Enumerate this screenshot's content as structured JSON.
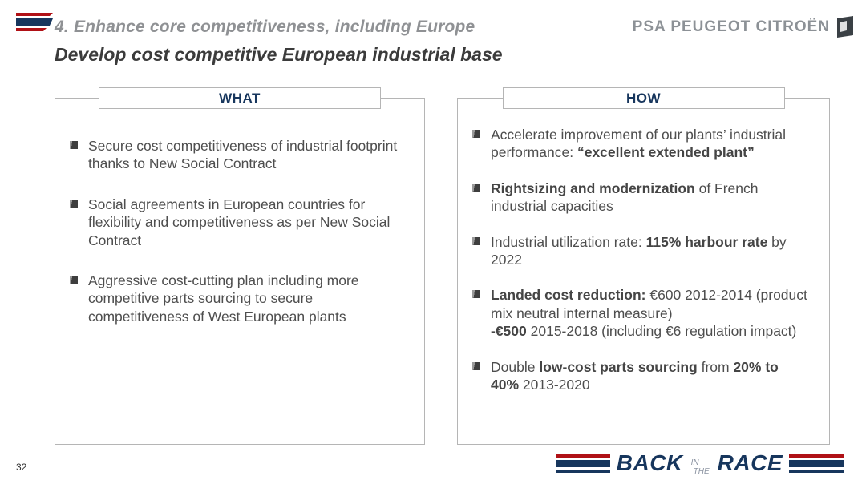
{
  "header": {
    "title": "4. Enhance core competitiveness, including Europe",
    "subtitle": "Develop cost competitive European industrial base",
    "brand": "PSA PEUGEOT CITROËN"
  },
  "columns": [
    {
      "label": "WHAT",
      "bullets": [
        [
          {
            "t": "Secure cost competitiveness of industrial footprint thanks to New Social Contract",
            "b": false
          }
        ],
        [
          {
            "t": "Social agreements in European countries for flexibility and competitiveness as per New Social Contract",
            "b": false
          }
        ],
        [
          {
            "t": "Aggressive cost-cutting plan including more competitive parts sourcing to secure competitiveness of West European plants",
            "b": false
          }
        ]
      ]
    },
    {
      "label": "HOW",
      "bullets": [
        [
          {
            "t": "Accelerate improvement of our plants’ industrial performance: ",
            "b": false
          },
          {
            "t": "“excellent extended plant”",
            "b": true
          }
        ],
        [
          {
            "t": "Rightsizing and modernization",
            "b": true
          },
          {
            "t": " of French industrial capacities",
            "b": false
          }
        ],
        [
          {
            "t": "Industrial utilization rate: ",
            "b": false
          },
          {
            "t": "115% harbour rate",
            "b": true
          },
          {
            "t": " by 2022",
            "b": false
          }
        ],
        [
          {
            "t": "Landed cost reduction:",
            "b": true
          },
          {
            "t": " €600 2012-2014 (product mix neutral internal measure)",
            "b": false
          },
          {
            "t": "-€500",
            "b": true,
            "br": true
          },
          {
            "t": " 2015-2018 (including €6 regulation impact)",
            "b": false
          }
        ],
        [
          {
            "t": "Double ",
            "b": false
          },
          {
            "t": "low-cost parts sourcing",
            "b": true
          },
          {
            "t": " from ",
            "b": false
          },
          {
            "t": "20% to 40%",
            "b": true
          },
          {
            "t": " 2013-2020",
            "b": false
          }
        ]
      ]
    }
  ],
  "footer": {
    "page_number": "32",
    "race_logo": {
      "back": "BACK",
      "in": "IN",
      "the": "THE",
      "race": "RACE"
    }
  },
  "icons": {
    "corner_stripes": "speed-stripes-icon",
    "brand_flag": "psa-flag-icon",
    "bullet": "bullet-square-icon"
  },
  "colors": {
    "accent_navy": "#17365d",
    "accent_red": "#b01116",
    "title_gray": "#8f9194",
    "body_gray": "#4e4e4e"
  }
}
